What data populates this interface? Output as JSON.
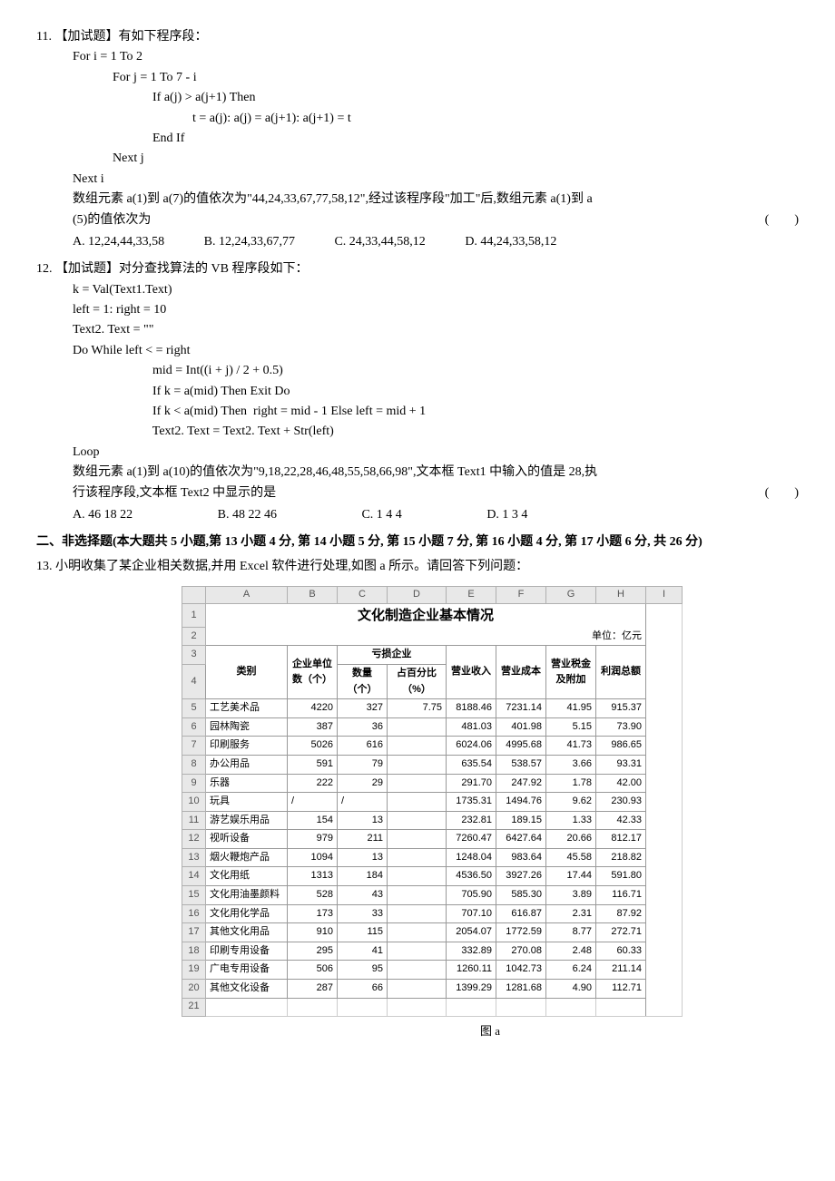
{
  "q11": {
    "number": "11.",
    "tag": "【加试题】",
    "prompt": "有如下程序段：",
    "code": [
      "For i = 1 To 2",
      "    For j = 1 To 7 - i",
      "        If a(j) > a(j+1) Then",
      "            t = a(j): a(j) = a(j+1): a(j+1) = t",
      "        End If",
      "    Next j",
      "Next i"
    ],
    "desc1": "数组元素 a(1)到 a(7)的值依次为\"44,24,33,67,77,58,12\",经过该程序段\"加工\"后,数组元素 a(1)到 a",
    "desc2": "(5)的值依次为",
    "options": {
      "A": "A. 12,24,44,33,58",
      "B": "B. 12,24,33,67,77",
      "C": "C. 24,33,44,58,12",
      "D": "D. 44,24,33,58,12"
    }
  },
  "q12": {
    "number": "12.",
    "tag": "【加试题】",
    "prompt": "对分查找算法的 VB 程序段如下：",
    "code": [
      "k = Val(Text1.Text)",
      "left = 1: right = 10",
      "Text2. Text = \"\"",
      "Do While left < = right",
      "        mid = Int((i + j) / 2 + 0.5)",
      "        If k = a(mid) Then Exit Do",
      "        If k < a(mid) Then  right = mid - 1 Else left = mid + 1",
      "        Text2. Text = Text2. Text + Str(left)",
      "Loop"
    ],
    "desc1": "数组元素 a(1)到 a(10)的值依次为\"9,18,22,28,46,48,55,58,66,98\",文本框 Text1 中输入的值是 28,执",
    "desc2": "行该程序段,文本框 Text2 中显示的是",
    "options": {
      "A": "A. 46 18 22",
      "B": "B. 48 22 46",
      "C": "C. 1 4 4",
      "D": "D. 1 3 4"
    }
  },
  "section2": {
    "header": "二、非选择题(本大题共 5 小题,第 13 小题 4 分, 第 14 小题 5 分, 第 15 小题 7 分, 第 16 小题 4 分, 第 17 小题 6 分, 共 26 分)"
  },
  "q13": {
    "number": "13.",
    "prompt": "小明收集了某企业相关数据,并用 Excel 软件进行处理,如图 a 所示。请回答下列问题："
  },
  "table": {
    "title": "文化制造企业基本情况",
    "unit": "单位：亿元",
    "caption": "图 a",
    "col_headers": [
      "",
      "A",
      "B",
      "C",
      "D",
      "E",
      "F",
      "G",
      "H",
      "I"
    ],
    "header_rows": {
      "r3": [
        "类别",
        "企业单位数（个）",
        "亏损企业",
        "",
        "营业收入",
        "营业成本",
        "营业税金及附加",
        "利润总额"
      ],
      "r4": [
        "",
        "",
        "数量（个）",
        "占百分比（%）",
        "",
        "",
        "",
        ""
      ]
    },
    "data": [
      {
        "row": 5,
        "cat": "工艺美术品",
        "units": "4220",
        "loss_n": "327",
        "loss_pct": "7.75",
        "income": "8188.46",
        "cost": "7231.14",
        "tax": "41.95",
        "profit": "915.37"
      },
      {
        "row": 6,
        "cat": "园林陶瓷",
        "units": "387",
        "loss_n": "36",
        "loss_pct": "",
        "income": "481.03",
        "cost": "401.98",
        "tax": "5.15",
        "profit": "73.90"
      },
      {
        "row": 7,
        "cat": "印刷服务",
        "units": "5026",
        "loss_n": "616",
        "loss_pct": "",
        "income": "6024.06",
        "cost": "4995.68",
        "tax": "41.73",
        "profit": "986.65"
      },
      {
        "row": 8,
        "cat": "办公用品",
        "units": "591",
        "loss_n": "79",
        "loss_pct": "",
        "income": "635.54",
        "cost": "538.57",
        "tax": "3.66",
        "profit": "93.31"
      },
      {
        "row": 9,
        "cat": "乐器",
        "units": "222",
        "loss_n": "29",
        "loss_pct": "",
        "income": "291.70",
        "cost": "247.92",
        "tax": "1.78",
        "profit": "42.00"
      },
      {
        "row": 10,
        "cat": "玩具",
        "units": "/",
        "loss_n": "/",
        "loss_pct": "",
        "income": "1735.31",
        "cost": "1494.76",
        "tax": "9.62",
        "profit": "230.93"
      },
      {
        "row": 11,
        "cat": "游艺娱乐用品",
        "units": "154",
        "loss_n": "13",
        "loss_pct": "",
        "income": "232.81",
        "cost": "189.15",
        "tax": "1.33",
        "profit": "42.33"
      },
      {
        "row": 12,
        "cat": "视听设备",
        "units": "979",
        "loss_n": "211",
        "loss_pct": "",
        "income": "7260.47",
        "cost": "6427.64",
        "tax": "20.66",
        "profit": "812.17"
      },
      {
        "row": 13,
        "cat": "烟火鞭炮产品",
        "units": "1094",
        "loss_n": "13",
        "loss_pct": "",
        "income": "1248.04",
        "cost": "983.64",
        "tax": "45.58",
        "profit": "218.82"
      },
      {
        "row": 14,
        "cat": "文化用纸",
        "units": "1313",
        "loss_n": "184",
        "loss_pct": "",
        "income": "4536.50",
        "cost": "3927.26",
        "tax": "17.44",
        "profit": "591.80"
      },
      {
        "row": 15,
        "cat": "文化用油墨颜料",
        "units": "528",
        "loss_n": "43",
        "loss_pct": "",
        "income": "705.90",
        "cost": "585.30",
        "tax": "3.89",
        "profit": "116.71"
      },
      {
        "row": 16,
        "cat": "文化用化学品",
        "units": "173",
        "loss_n": "33",
        "loss_pct": "",
        "income": "707.10",
        "cost": "616.87",
        "tax": "2.31",
        "profit": "87.92"
      },
      {
        "row": 17,
        "cat": "其他文化用品",
        "units": "910",
        "loss_n": "115",
        "loss_pct": "",
        "income": "2054.07",
        "cost": "1772.59",
        "tax": "8.77",
        "profit": "272.71"
      },
      {
        "row": 18,
        "cat": "印刷专用设备",
        "units": "295",
        "loss_n": "41",
        "loss_pct": "",
        "income": "332.89",
        "cost": "270.08",
        "tax": "2.48",
        "profit": "60.33"
      },
      {
        "row": 19,
        "cat": "广电专用设备",
        "units": "506",
        "loss_n": "95",
        "loss_pct": "",
        "income": "1260.11",
        "cost": "1042.73",
        "tax": "6.24",
        "profit": "211.14"
      },
      {
        "row": 20,
        "cat": "其他文化设备",
        "units": "287",
        "loss_n": "66",
        "loss_pct": "",
        "income": "1399.29",
        "cost": "1281.68",
        "tax": "4.90",
        "profit": "112.71"
      }
    ]
  }
}
